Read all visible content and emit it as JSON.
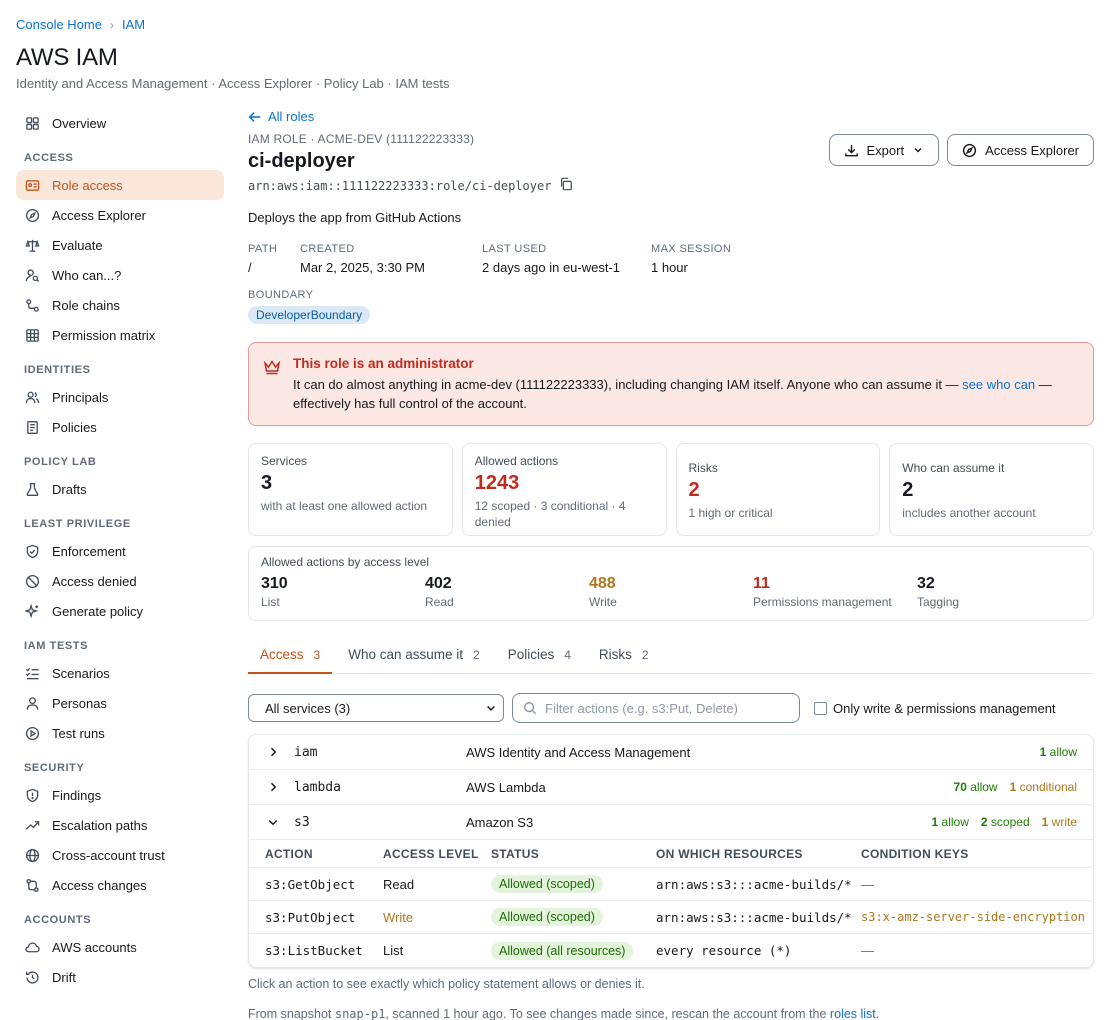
{
  "breadcrumb": {
    "home": "Console Home",
    "current": "IAM",
    "sep": "›"
  },
  "header": {
    "title": "AWS IAM",
    "subnav": "Identity and Access Management · Access Explorer · Policy Lab · IAM tests"
  },
  "sidebar": {
    "top": [
      {
        "label": "Overview",
        "icon": "overview-icon"
      }
    ],
    "sections": [
      {
        "title": "ACCESS",
        "items": [
          {
            "label": "Role access",
            "icon": "id-card-icon",
            "active": true
          },
          {
            "label": "Access Explorer",
            "icon": "compass-icon"
          },
          {
            "label": "Evaluate",
            "icon": "scale-icon"
          },
          {
            "label": "Who can...?",
            "icon": "user-search-icon"
          },
          {
            "label": "Role chains",
            "icon": "chain-icon"
          },
          {
            "label": "Permission matrix",
            "icon": "grid-icon"
          }
        ]
      },
      {
        "title": "IDENTITIES",
        "items": [
          {
            "label": "Principals",
            "icon": "users-icon"
          },
          {
            "label": "Policies",
            "icon": "document-icon"
          }
        ]
      },
      {
        "title": "POLICY LAB",
        "items": [
          {
            "label": "Drafts",
            "icon": "flask-icon"
          }
        ]
      },
      {
        "title": "LEAST PRIVILEGE",
        "items": [
          {
            "label": "Enforcement",
            "icon": "shield-check-icon"
          },
          {
            "label": "Access denied",
            "icon": "block-icon"
          },
          {
            "label": "Generate policy",
            "icon": "sparkle-icon"
          }
        ]
      },
      {
        "title": "IAM TESTS",
        "items": [
          {
            "label": "Scenarios",
            "icon": "checklist-icon"
          },
          {
            "label": "Personas",
            "icon": "persona-icon"
          },
          {
            "label": "Test runs",
            "icon": "play-icon"
          }
        ]
      },
      {
        "title": "SECURITY",
        "items": [
          {
            "label": "Findings",
            "icon": "shield-alert-icon"
          },
          {
            "label": "Escalation paths",
            "icon": "trend-up-icon"
          },
          {
            "label": "Cross-account trust",
            "icon": "globe-icon"
          },
          {
            "label": "Access changes",
            "icon": "git-compare-icon"
          }
        ]
      },
      {
        "title": "ACCOUNTS",
        "items": [
          {
            "label": "AWS accounts",
            "icon": "cloud-icon"
          },
          {
            "label": "Drift",
            "icon": "history-icon"
          }
        ]
      }
    ]
  },
  "role": {
    "back": "All roles",
    "kicker": "IAM ROLE · ACME-DEV (111122223333)",
    "name": "ci-deployer",
    "arn": "arn:aws:iam::111122223333:role/ci-deployer",
    "description": "Deploys the app from GitHub Actions",
    "meta": [
      {
        "k": "PATH",
        "v": "/"
      },
      {
        "k": "CREATED",
        "v": "Mar 2, 2025, 3:30 PM"
      },
      {
        "k": "LAST USED",
        "v": "2 days ago in eu-west-1"
      },
      {
        "k": "MAX SESSION",
        "v": "1 hour"
      }
    ],
    "boundary_label": "BOUNDARY",
    "boundary": "DeveloperBoundary"
  },
  "actions": {
    "export": "Export",
    "explorer": "Access Explorer"
  },
  "alert": {
    "title": "This role is an administrator",
    "body_pre": "It can do almost anything in acme-dev (111122223333), including changing IAM itself. Anyone who can assume it — ",
    "link": "see who can",
    "body_post": " — effectively has full control of the account."
  },
  "stats": {
    "services": {
      "label": "Services",
      "value": "3",
      "sub": "with at least one allowed action"
    },
    "allowed": {
      "label": "Allowed actions",
      "value": "1243",
      "sub": "12 scoped · 3 conditional · 4 denied"
    },
    "risks": {
      "label": "Risks",
      "value": "2",
      "sub": "1 high or critical"
    },
    "assume": {
      "label": "Who can assume it",
      "value": "2",
      "sub": "includes another account"
    }
  },
  "levels": {
    "title": "Allowed actions by access level",
    "items": [
      {
        "n": "310",
        "c": "List"
      },
      {
        "n": "402",
        "c": "Read"
      },
      {
        "n": "488",
        "c": "Write"
      },
      {
        "n": "11",
        "c": "Permissions management"
      },
      {
        "n": "32",
        "c": "Tagging"
      }
    ]
  },
  "tabs": [
    {
      "label": "Access",
      "count": "3",
      "active": true
    },
    {
      "label": "Who can assume it",
      "count": "2"
    },
    {
      "label": "Policies",
      "count": "4"
    },
    {
      "label": "Risks",
      "count": "2"
    }
  ],
  "filters": {
    "service": "All services (3)",
    "search_placeholder": "Filter actions (e.g. s3:Put, Delete)",
    "only_write": "Only write & permissions management"
  },
  "services": [
    {
      "code": "iam",
      "name": "AWS Identity and Access Management",
      "allow_n": "1",
      "allow": "allow"
    },
    {
      "code": "lambda",
      "name": "AWS Lambda",
      "allow_n": "70",
      "allow": "allow",
      "cond_n": "1",
      "cond": "conditional"
    },
    {
      "code": "s3",
      "name": "Amazon S3",
      "allow_n": "1",
      "allow": "allow",
      "scoped_n": "2",
      "scoped": "scoped",
      "write_n": "1",
      "write": "write"
    }
  ],
  "action_table": {
    "headers": [
      "ACTION",
      "ACCESS LEVEL",
      "STATUS",
      "ON WHICH RESOURCES",
      "CONDITION KEYS"
    ],
    "rows": [
      {
        "action": "s3:GetObject",
        "level": "Read",
        "status": "Allowed (scoped)",
        "resource": "arn:aws:s3:::acme-builds/*",
        "cond": "—"
      },
      {
        "action": "s3:PutObject",
        "level": "Write",
        "status": "Allowed (scoped)",
        "resource": "arn:aws:s3:::acme-builds/*",
        "cond": "s3:x-amz-server-side-encryption"
      },
      {
        "action": "s3:ListBucket",
        "level": "List",
        "status": "Allowed (all resources)",
        "resource": "every resource (*)",
        "cond": "—"
      }
    ]
  },
  "hint": "Click an action to see exactly which policy statement allows or denies it.",
  "footer": {
    "pre": "From snapshot ",
    "snap": "snap-p1",
    "mid": ", scanned 1 hour ago. To see changes made since, rescan the account from the ",
    "link": "roles list",
    "post": "."
  }
}
